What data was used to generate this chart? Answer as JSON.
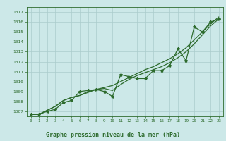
{
  "xlabel": "Graphe pression niveau de la mer (hPa)",
  "bg_color": "#cce8e8",
  "grid_color": "#aacccc",
  "line_color": "#2d6b2d",
  "xlim": [
    -0.5,
    23.5
  ],
  "ylim": [
    1006.5,
    1017.5
  ],
  "yticks": [
    1007,
    1008,
    1009,
    1010,
    1011,
    1012,
    1013,
    1014,
    1015,
    1016,
    1017
  ],
  "xticks": [
    0,
    1,
    2,
    3,
    4,
    5,
    6,
    7,
    8,
    9,
    10,
    11,
    12,
    13,
    14,
    15,
    16,
    17,
    18,
    19,
    20,
    21,
    22,
    23
  ],
  "series1_x": [
    0,
    1,
    2,
    3,
    4,
    5,
    6,
    7,
    8,
    9,
    10,
    11,
    12,
    13,
    14,
    15,
    16,
    17,
    18,
    19,
    20,
    21,
    22,
    23
  ],
  "series1_y": [
    1006.7,
    1006.7,
    1007.0,
    1007.2,
    1007.9,
    1008.1,
    1009.0,
    1009.1,
    1009.2,
    1009.0,
    1008.5,
    1010.7,
    1010.5,
    1010.3,
    1010.3,
    1011.1,
    1011.1,
    1011.6,
    1013.3,
    1012.1,
    1015.5,
    1015.0,
    1016.0,
    1016.3
  ],
  "series2_x": [
    0,
    1,
    2,
    3,
    4,
    5,
    6,
    7,
    8,
    9,
    10,
    11,
    12,
    13,
    14,
    15,
    16,
    17,
    18,
    19,
    20,
    21,
    22,
    23
  ],
  "series2_y": [
    1006.7,
    1006.7,
    1007.1,
    1007.5,
    1008.1,
    1008.4,
    1008.6,
    1008.9,
    1009.2,
    1009.3,
    1009.1,
    1009.7,
    1010.2,
    1010.6,
    1010.9,
    1011.2,
    1011.5,
    1011.9,
    1012.4,
    1013.0,
    1013.8,
    1014.7,
    1015.6,
    1016.3
  ],
  "series3_x": [
    0,
    1,
    2,
    3,
    4,
    5,
    6,
    7,
    8,
    9,
    10,
    11,
    12,
    13,
    14,
    15,
    16,
    17,
    18,
    19,
    20,
    21,
    22,
    23
  ],
  "series3_y": [
    1006.7,
    1006.7,
    1007.1,
    1007.5,
    1008.1,
    1008.4,
    1008.6,
    1009.0,
    1009.2,
    1009.4,
    1009.6,
    1010.0,
    1010.4,
    1010.8,
    1011.2,
    1011.5,
    1011.9,
    1012.3,
    1012.8,
    1013.4,
    1014.2,
    1015.0,
    1015.8,
    1016.5
  ]
}
